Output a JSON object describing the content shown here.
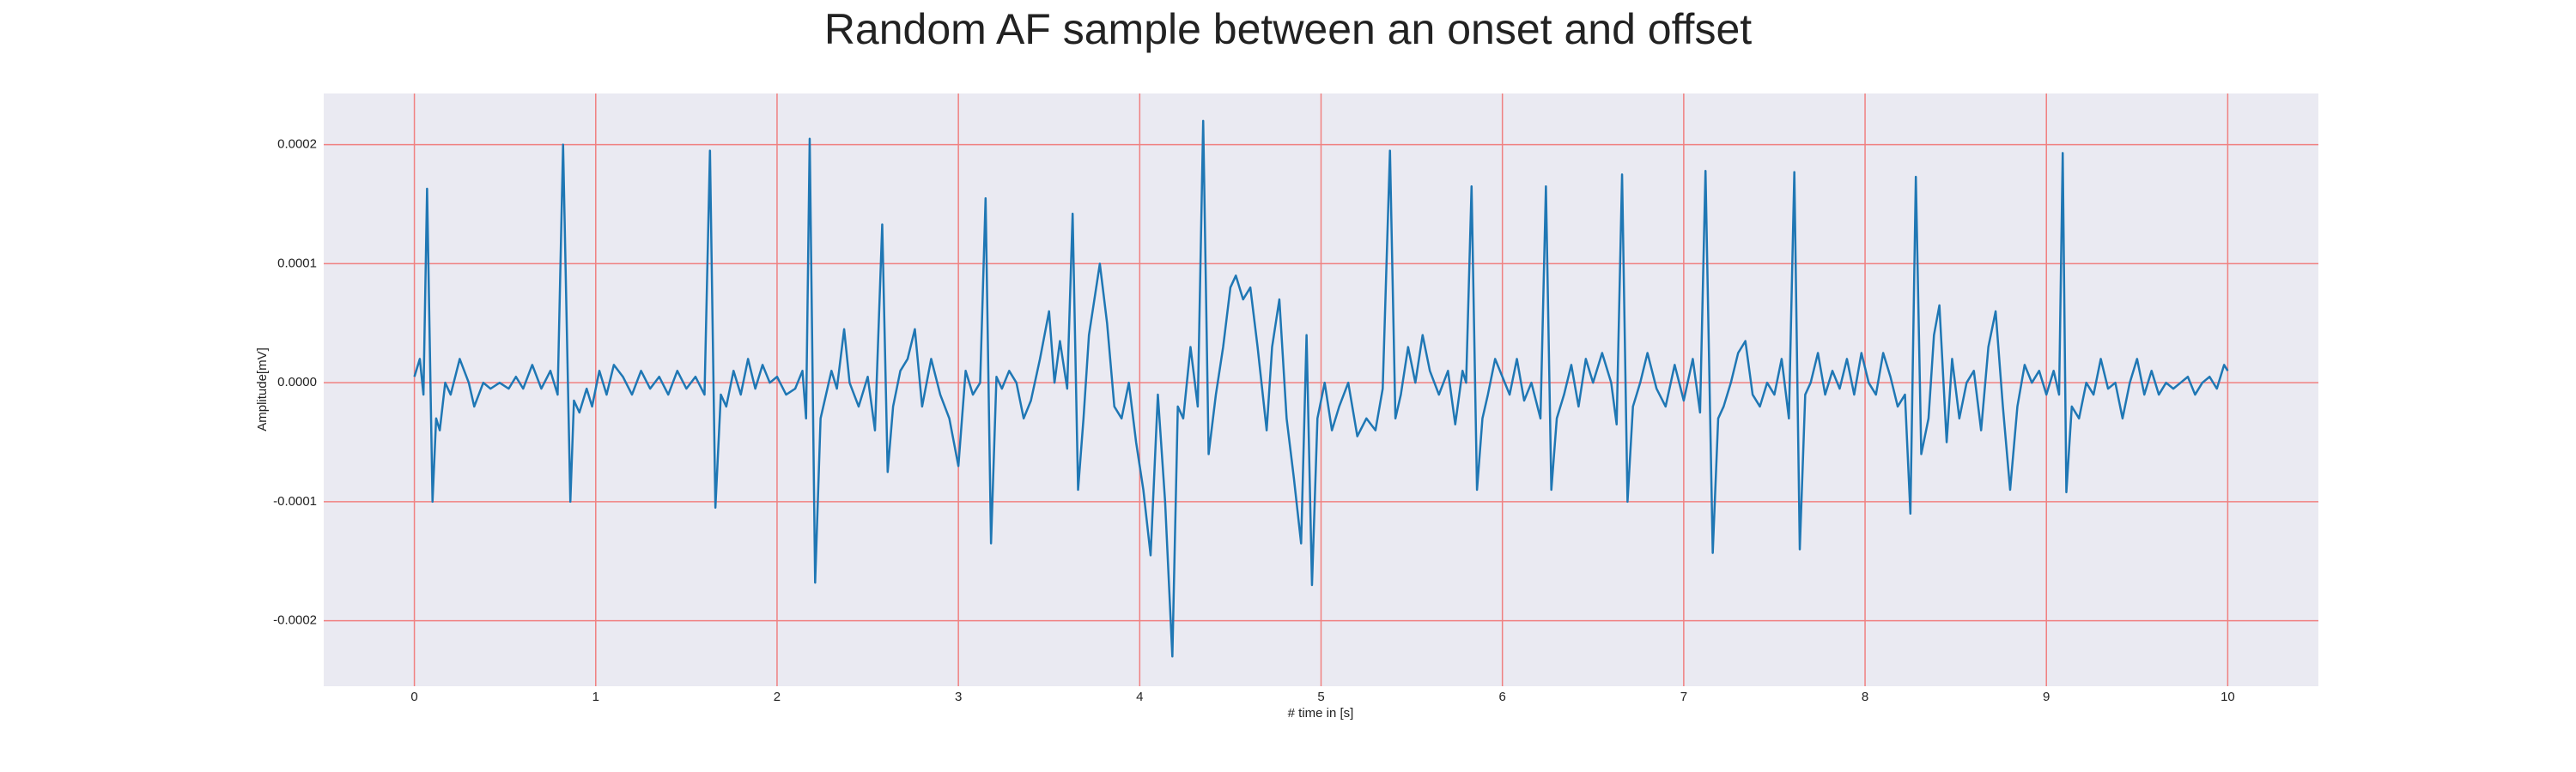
{
  "chart_data": {
    "type": "line",
    "title": "Random AF sample between an onset and offset",
    "xlabel": "# time in [s]",
    "ylabel": "Amplitude[mV]",
    "color": "#1f77b4",
    "grid": true,
    "grid_color": "#f08080",
    "background": "#eaeaf2",
    "xlim": [
      -0.5,
      10.5
    ],
    "ylim": [
      -0.000255,
      0.000243
    ],
    "xticks": [
      0,
      1,
      2,
      3,
      4,
      5,
      6,
      7,
      8,
      9,
      10
    ],
    "yticks": [
      {
        "value": -0.0002,
        "label": "-0.0002"
      },
      {
        "value": -0.0001,
        "label": "-0.0001"
      },
      {
        "value": 0,
        "label": "0.0000"
      },
      {
        "value": 0.0001,
        "label": "0.0001"
      },
      {
        "value": 0.0002,
        "label": "0.0002"
      }
    ],
    "x": [
      0.0,
      0.03,
      0.05,
      0.07,
      0.1,
      0.12,
      0.14,
      0.17,
      0.2,
      0.25,
      0.3,
      0.33,
      0.38,
      0.42,
      0.47,
      0.52,
      0.56,
      0.6,
      0.65,
      0.7,
      0.75,
      0.79,
      0.82,
      0.86,
      0.88,
      0.91,
      0.95,
      0.98,
      1.02,
      1.06,
      1.1,
      1.15,
      1.2,
      1.25,
      1.3,
      1.35,
      1.4,
      1.45,
      1.5,
      1.55,
      1.6,
      1.63,
      1.66,
      1.69,
      1.72,
      1.76,
      1.8,
      1.84,
      1.88,
      1.92,
      1.96,
      2.0,
      2.05,
      2.1,
      2.14,
      2.16,
      2.18,
      2.21,
      2.24,
      2.27,
      2.3,
      2.33,
      2.37,
      2.4,
      2.45,
      2.5,
      2.54,
      2.58,
      2.61,
      2.64,
      2.68,
      2.72,
      2.76,
      2.8,
      2.85,
      2.9,
      2.95,
      3.0,
      3.04,
      3.08,
      3.12,
      3.15,
      3.18,
      3.21,
      3.24,
      3.28,
      3.32,
      3.36,
      3.4,
      3.45,
      3.5,
      3.53,
      3.56,
      3.6,
      3.63,
      3.66,
      3.69,
      3.72,
      3.78,
      3.82,
      3.86,
      3.9,
      3.94,
      3.98,
      4.02,
      4.06,
      4.1,
      4.14,
      4.18,
      4.21,
      4.24,
      4.28,
      4.32,
      4.35,
      4.38,
      4.42,
      4.46,
      4.5,
      4.53,
      4.57,
      4.61,
      4.65,
      4.7,
      4.73,
      4.77,
      4.81,
      4.85,
      4.89,
      4.92,
      4.95,
      4.98,
      5.02,
      5.06,
      5.1,
      5.15,
      5.2,
      5.25,
      5.3,
      5.34,
      5.38,
      5.41,
      5.44,
      5.48,
      5.52,
      5.56,
      5.6,
      5.65,
      5.7,
      5.74,
      5.78,
      5.8,
      5.83,
      5.86,
      5.89,
      5.92,
      5.96,
      6.0,
      6.04,
      6.08,
      6.12,
      6.16,
      6.21,
      6.24,
      6.27,
      6.3,
      6.34,
      6.38,
      6.42,
      6.46,
      6.5,
      6.55,
      6.6,
      6.63,
      6.66,
      6.69,
      6.72,
      6.76,
      6.8,
      6.85,
      6.9,
      6.95,
      7.0,
      7.05,
      7.09,
      7.12,
      7.16,
      7.19,
      7.22,
      7.26,
      7.3,
      7.34,
      7.38,
      7.42,
      7.46,
      7.5,
      7.54,
      7.58,
      7.61,
      7.64,
      7.67,
      7.7,
      7.74,
      7.78,
      7.82,
      7.86,
      7.9,
      7.94,
      7.98,
      8.02,
      8.06,
      8.1,
      8.14,
      8.18,
      8.22,
      8.25,
      8.28,
      8.31,
      8.35,
      8.38,
      8.41,
      8.45,
      8.48,
      8.52,
      8.56,
      8.6,
      8.64,
      8.68,
      8.72,
      8.76,
      8.8,
      8.84,
      8.88,
      8.92,
      8.96,
      9.0,
      9.04,
      9.07,
      9.09,
      9.11,
      9.14,
      9.18,
      9.22,
      9.26,
      9.3,
      9.34,
      9.38,
      9.42,
      9.46,
      9.5,
      9.54,
      9.58,
      9.62,
      9.66,
      9.7,
      9.74,
      9.78,
      9.82,
      9.86,
      9.9,
      9.94,
      9.98,
      10.0
    ],
    "values": [
      5e-06,
      2e-05,
      -1e-05,
      0.000163,
      -0.0001,
      -3e-05,
      -4e-05,
      0,
      -1e-05,
      2e-05,
      0,
      -2e-05,
      0,
      -5e-06,
      0,
      -5e-06,
      5e-06,
      -5e-06,
      1.5e-05,
      -5e-06,
      1e-05,
      -1e-05,
      0.0002,
      -0.0001,
      -1.5e-05,
      -2.5e-05,
      -5e-06,
      -2e-05,
      1e-05,
      -1e-05,
      1.5e-05,
      5e-06,
      -1e-05,
      1e-05,
      -5e-06,
      5e-06,
      -1e-05,
      1e-05,
      -5e-06,
      5e-06,
      -1e-05,
      0.000195,
      -0.000105,
      -1e-05,
      -2e-05,
      1e-05,
      -1e-05,
      2e-05,
      -5e-06,
      1.5e-05,
      0,
      5e-06,
      -1e-05,
      -5e-06,
      1e-05,
      -3e-05,
      0.000205,
      -0.000168,
      -3e-05,
      -1e-05,
      1e-05,
      -5e-06,
      4.5e-05,
      0,
      -2e-05,
      5e-06,
      -4e-05,
      0.000133,
      -7.5e-05,
      -2e-05,
      1e-05,
      2e-05,
      4.5e-05,
      -2e-05,
      2e-05,
      -1e-05,
      -3e-05,
      -7e-05,
      1e-05,
      -1e-05,
      0,
      0.000155,
      -0.000135,
      5e-06,
      -5e-06,
      1e-05,
      0,
      -3e-05,
      -1.5e-05,
      2e-05,
      6e-05,
      0,
      3.5e-05,
      -5e-06,
      0.000142,
      -9e-05,
      -3e-05,
      4e-05,
      0.0001,
      5e-05,
      -2e-05,
      -3e-05,
      0,
      -5e-05,
      -9e-05,
      -0.000145,
      -1e-05,
      -0.0001,
      -0.00023,
      -2e-05,
      -3e-05,
      3e-05,
      -2e-05,
      0.00022,
      -6e-05,
      -1e-05,
      3e-05,
      8e-05,
      9e-05,
      7e-05,
      8e-05,
      3e-05,
      -4e-05,
      3e-05,
      7e-05,
      -3e-05,
      -8e-05,
      -0.000135,
      4e-05,
      -0.00017,
      -3e-05,
      0,
      -4e-05,
      -2e-05,
      0,
      -4.5e-05,
      -3e-05,
      -4e-05,
      -5e-06,
      0.000195,
      -3e-05,
      -1e-05,
      3e-05,
      0,
      4e-05,
      1e-05,
      -1e-05,
      1e-05,
      -3.5e-05,
      1e-05,
      0,
      0.000165,
      -9e-05,
      -3e-05,
      -1e-05,
      2e-05,
      5e-06,
      -1e-05,
      2e-05,
      -1.5e-05,
      0,
      -3e-05,
      0.000165,
      -9e-05,
      -3e-05,
      -1e-05,
      1.5e-05,
      -2e-05,
      2e-05,
      0,
      2.5e-05,
      0,
      -3.5e-05,
      0.000175,
      -0.0001,
      -2e-05,
      0,
      2.5e-05,
      -5e-06,
      -2e-05,
      1.5e-05,
      -1.5e-05,
      2e-05,
      -2.5e-05,
      0.000178,
      -0.000143,
      -3e-05,
      -2e-05,
      0,
      2.5e-05,
      3.5e-05,
      -1e-05,
      -2e-05,
      0,
      -1e-05,
      2e-05,
      -3e-05,
      0.000177,
      -0.00014,
      -1e-05,
      0,
      2.5e-05,
      -1e-05,
      1e-05,
      -5e-06,
      2e-05,
      -1e-05,
      2.5e-05,
      0,
      -1e-05,
      2.5e-05,
      5e-06,
      -2e-05,
      -1e-05,
      -0.00011,
      0.000173,
      -6e-05,
      -3e-05,
      4e-05,
      6.5e-05,
      -5e-05,
      2e-05,
      -3e-05,
      0,
      1e-05,
      -4e-05,
      3e-05,
      6e-05,
      -2e-05,
      -9e-05,
      -2e-05,
      1.5e-05,
      0,
      1e-05,
      -1e-05,
      1e-05,
      -1e-05,
      0.000193,
      -9.2e-05,
      -2e-05,
      -3e-05,
      0,
      -1e-05,
      2e-05,
      -5e-06,
      0,
      -3e-05,
      0,
      2e-05,
      -1e-05,
      1e-05,
      -1e-05,
      0,
      -5e-06,
      0,
      5e-06,
      -1e-05,
      0,
      5e-06,
      -5e-06,
      1.5e-05,
      1e-05
    ]
  }
}
